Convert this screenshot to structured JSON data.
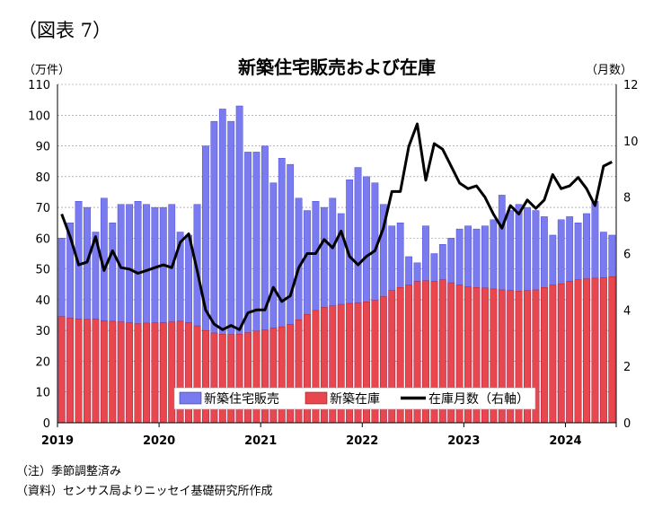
{
  "figure_label": "（図表 7）",
  "notes": [
    "（注）季節調整済み",
    "（資料）センサス局よりニッセイ基礎研究所作成"
  ],
  "colors": {
    "sales": "#7b7bf0",
    "inventory": "#e8474f",
    "months": "#000000",
    "grid": "#888888"
  },
  "chart_data": {
    "type": "bar+line",
    "title": "新築住宅販売および在庫",
    "left_axis_unit": "（万件）",
    "right_axis_unit": "（月数）",
    "ylim_left": [
      0,
      110
    ],
    "yticks_left": [
      0,
      10,
      20,
      30,
      40,
      50,
      60,
      70,
      80,
      90,
      100,
      110
    ],
    "ylim_right": [
      0,
      12
    ],
    "yticks_right": [
      0,
      2,
      4,
      6,
      8,
      10,
      12
    ],
    "x_year_labels": [
      "2019",
      "2020",
      "2021",
      "2022",
      "2023",
      "2024"
    ],
    "grid": true,
    "legend_position": "bottom-center",
    "series": [
      {
        "name": "新築住宅販売",
        "kind": "bar",
        "axis": "left",
        "values": [
          60,
          65,
          72,
          70,
          62,
          73,
          65,
          71,
          71,
          72,
          71,
          70,
          70,
          71,
          62,
          61,
          71,
          90,
          98,
          102,
          98,
          103,
          88,
          88,
          90,
          78,
          86,
          84,
          73,
          69,
          72,
          70,
          73,
          68,
          79,
          83,
          80,
          78,
          71,
          64,
          65,
          54,
          52,
          64,
          55,
          58,
          60,
          63,
          64,
          63,
          64,
          66,
          74,
          69,
          71,
          70,
          69,
          67,
          61,
          66,
          67,
          65,
          68,
          72,
          62,
          61
        ]
      },
      {
        "name": "新築在庫",
        "kind": "bar",
        "axis": "left",
        "values": [
          34.5,
          34,
          33.8,
          33.6,
          33.8,
          33.2,
          33,
          32.8,
          32.5,
          32.2,
          32.4,
          32.5,
          32.6,
          32.8,
          33,
          32.6,
          31.5,
          30,
          29.2,
          28.8,
          28.7,
          28.8,
          29.3,
          29.8,
          30.2,
          30.8,
          31.2,
          32,
          33.5,
          35.2,
          36.5,
          37.5,
          38,
          38.5,
          38.8,
          39,
          39.3,
          39.8,
          41,
          43,
          44,
          44.8,
          46,
          46.2,
          46,
          46.5,
          45.5,
          44.8,
          44.2,
          44,
          43.8,
          43.5,
          43.2,
          43,
          42.8,
          43,
          43.2,
          44,
          44.8,
          45.2,
          46,
          46.5,
          46.8,
          47,
          47.2,
          47.5
        ]
      },
      {
        "name": "在庫月数（右軸）",
        "kind": "line",
        "axis": "right",
        "values": [
          7.4,
          6.6,
          5.6,
          5.7,
          6.6,
          5.4,
          6.1,
          5.5,
          5.45,
          5.3,
          5.4,
          5.5,
          5.6,
          5.5,
          6.4,
          6.7,
          5.4,
          4.0,
          3.5,
          3.3,
          3.45,
          3.3,
          3.9,
          4.0,
          4.0,
          4.8,
          4.3,
          4.5,
          5.5,
          6.0,
          6.0,
          6.5,
          6.2,
          6.8,
          5.9,
          5.6,
          5.9,
          6.1,
          6.9,
          8.2,
          8.2,
          9.8,
          10.6,
          8.6,
          9.9,
          9.7,
          9.1,
          8.5,
          8.3,
          8.4,
          8.0,
          7.4,
          6.9,
          7.7,
          7.4,
          7.9,
          7.6,
          7.9,
          8.8,
          8.3,
          8.4,
          8.7,
          8.3,
          7.7,
          9.1,
          9.25
        ]
      }
    ]
  }
}
